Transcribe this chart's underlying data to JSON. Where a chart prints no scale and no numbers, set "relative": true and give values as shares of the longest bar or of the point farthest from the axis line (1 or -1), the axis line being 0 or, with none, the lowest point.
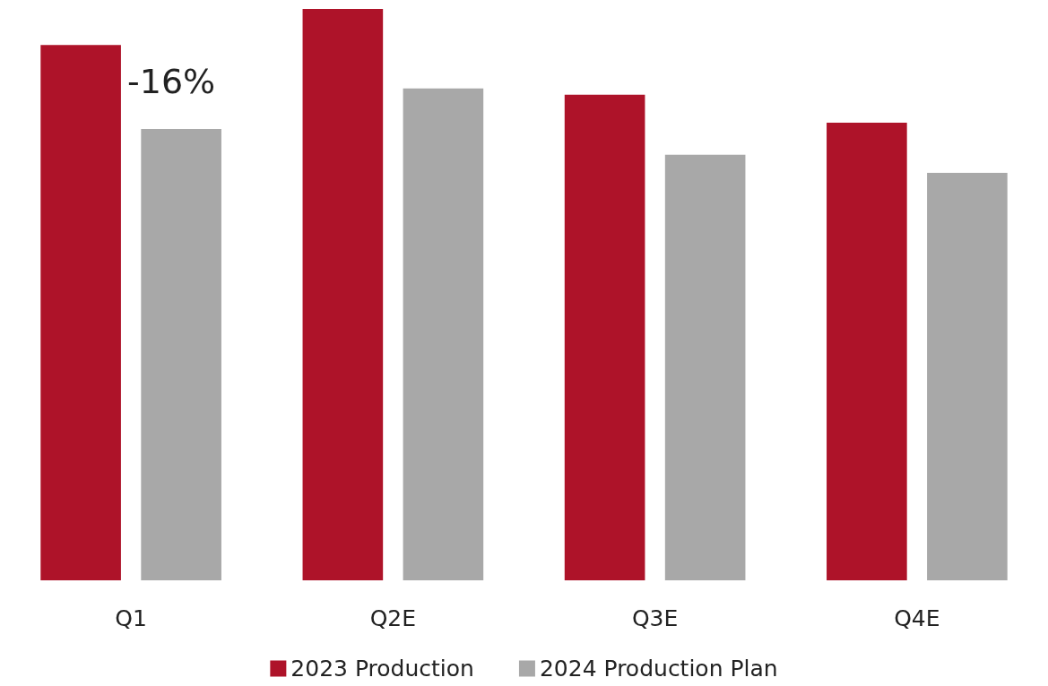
{
  "chart_data": {
    "type": "bar",
    "relative": true,
    "categories": [
      "Q1",
      "Q2E",
      "Q3E",
      "Q4E"
    ],
    "series": [
      {
        "name": "2023 Production",
        "color": "#ae1329",
        "values": [
          0.937,
          1,
          0.85,
          0.801
        ]
      },
      {
        "name": "2024 Production Plan",
        "color": "#a8a8a8",
        "values": [
          0.79,
          0.861,
          0.745,
          0.713
        ]
      }
    ],
    "annotations": [
      "-16%"
    ],
    "legend": "bottom"
  }
}
